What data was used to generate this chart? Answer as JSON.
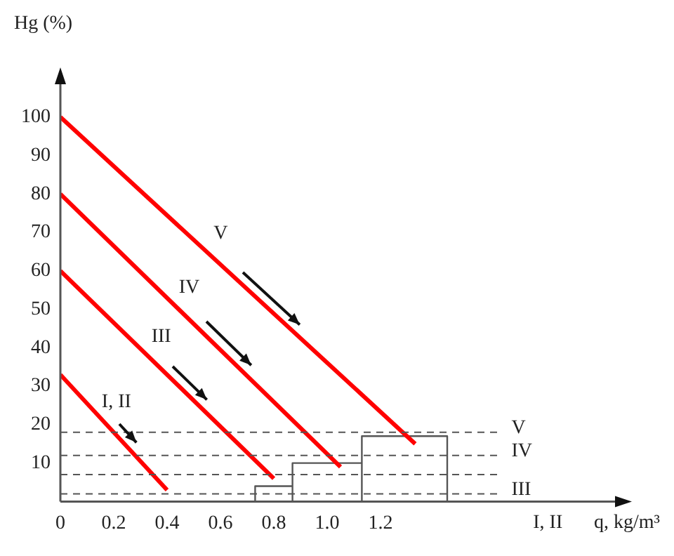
{
  "chart_data": {
    "type": "line",
    "xlabel": "q, kg/m³",
    "ylabel": "Hg (%)",
    "xlim": [
      0,
      2.1
    ],
    "ylim": [
      0,
      110
    ],
    "xticks": [
      0,
      0.2,
      0.4,
      0.6,
      0.8,
      {
        "value": 1,
        "label": "1.0"
      },
      1.2
    ],
    "yticks": [
      10,
      20,
      30,
      40,
      50,
      60,
      70,
      80,
      90,
      100
    ],
    "series": [
      {
        "name": "V",
        "color": "#ff0000",
        "x": [
          0,
          1.33
        ],
        "values": [
          100,
          15
        ]
      },
      {
        "name": "IV",
        "color": "#ff0000",
        "x": [
          0,
          1.05
        ],
        "values": [
          80,
          9
        ]
      },
      {
        "name": "III",
        "color": "#ff0000",
        "x": [
          0,
          0.8
        ],
        "values": [
          60,
          6
        ]
      },
      {
        "name": "I, II",
        "color": "#ff0000",
        "x": [
          0,
          0.4
        ],
        "values": [
          33,
          3
        ]
      },
      {
        "color": "#555555",
        "x": [
          0.73,
          0.73,
          0.87,
          0.87,
          0.87,
          1.13,
          1.13,
          1.13,
          1.45,
          1.45
        ],
        "values": [
          0,
          4,
          4,
          0,
          10,
          10,
          0,
          17,
          17,
          0
        ]
      }
    ],
    "ref_lines": [
      {
        "axis": "y",
        "value": 18,
        "label": "V",
        "line_style": "dashed",
        "color": "#555555"
      },
      {
        "axis": "y",
        "value": 12,
        "label": "IV",
        "line_style": "dashed",
        "color": "#555555"
      },
      {
        "axis": "y",
        "value": 7,
        "line_style": "dashed",
        "color": "#555555"
      },
      {
        "axis": "y",
        "value": 2,
        "label": "III",
        "line_style": "dashed",
        "color": "#555555"
      }
    ],
    "annotations": [
      "I, II"
    ],
    "grid": false,
    "legend": false,
    "marker": "none",
    "line_style": "solid"
  }
}
